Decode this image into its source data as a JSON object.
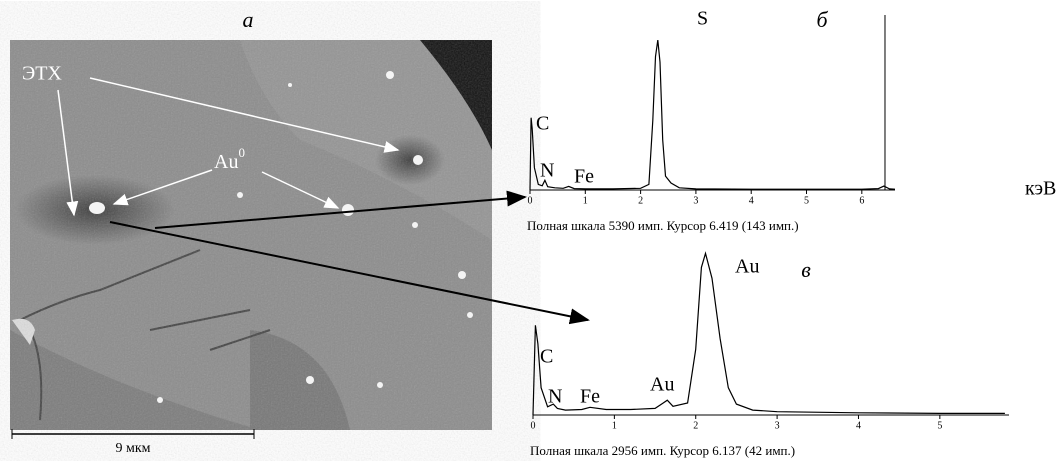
{
  "figure": {
    "panel_a": "а",
    "label_etx": "ЭТХ",
    "label_au": "Au",
    "label_au_sup": "0",
    "scale_bar": "9 мкм"
  },
  "chart_data": [
    {
      "type": "line",
      "panel": "б",
      "x_label": "кэВ",
      "peak_labels": [
        "C",
        "N",
        "Fe",
        "S"
      ],
      "caption": "Полная шкала 5390 имп. Курсор 6.419 (143 имп.)",
      "cursor": 6.419,
      "xlim": [
        0,
        6.6
      ],
      "xticks": [
        0,
        1,
        2,
        3,
        4,
        5,
        6
      ],
      "ylim": [
        0,
        5500
      ],
      "color": "#000000",
      "x": [
        0,
        0.02,
        0.04,
        0.08,
        0.15,
        0.22,
        0.27,
        0.32,
        0.45,
        0.6,
        0.7,
        0.8,
        1.0,
        1.5,
        2.0,
        2.15,
        2.22,
        2.27,
        2.31,
        2.35,
        2.4,
        2.45,
        2.55,
        2.7,
        3.0,
        4.0,
        5.0,
        6.0,
        6.3,
        6.4,
        6.5,
        6.6
      ],
      "values": [
        0,
        2600,
        2200,
        800,
        200,
        150,
        350,
        120,
        80,
        60,
        130,
        50,
        40,
        40,
        60,
        200,
        2500,
        4800,
        5390,
        4600,
        1800,
        500,
        250,
        80,
        40,
        30,
        30,
        30,
        50,
        140,
        40,
        30
      ]
    },
    {
      "type": "line",
      "panel": "в",
      "peak_labels": [
        "C",
        "N",
        "Fe",
        "Au",
        "Au"
      ],
      "caption": "Полная шкала 2956 имп. Курсор 6.137 (42 имп.)",
      "xlim": [
        0,
        5.85
      ],
      "xticks": [
        0,
        1,
        2,
        3,
        4,
        5
      ],
      "ylim": [
        0,
        3000
      ],
      "color": "#000000",
      "x": [
        0,
        0.03,
        0.06,
        0.1,
        0.18,
        0.25,
        0.3,
        0.4,
        0.6,
        0.7,
        0.9,
        1.2,
        1.5,
        1.6,
        1.65,
        1.72,
        1.9,
        2.0,
        2.07,
        2.12,
        2.2,
        2.3,
        2.4,
        2.5,
        2.7,
        3.0,
        4.0,
        5.0,
        5.8
      ],
      "values": [
        0,
        1640,
        1300,
        500,
        150,
        200,
        120,
        90,
        100,
        140,
        100,
        100,
        120,
        220,
        270,
        160,
        220,
        1200,
        2700,
        2956,
        2500,
        1400,
        500,
        200,
        90,
        60,
        40,
        30,
        30
      ]
    }
  ]
}
